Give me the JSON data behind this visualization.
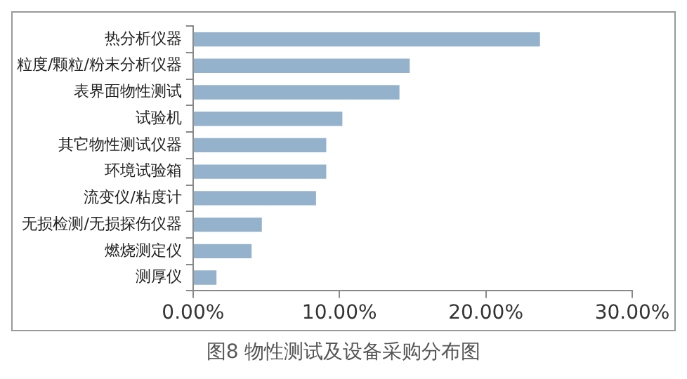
{
  "chart_data": {
    "type": "bar",
    "orientation": "horizontal",
    "title": "图8 物性测试及设备采购分布图",
    "categories": [
      "热分析仪器",
      "粒度/颗粒/粉末分析仪器",
      "表界面物性测试",
      "试验机",
      "其它物性测试仪器",
      "环境试验箱",
      "流变仪/粘度计",
      "无损检测/无损探伤仪器",
      "燃烧测定仪",
      "测厚仪"
    ],
    "values": [
      23.7,
      14.8,
      14.1,
      10.2,
      9.1,
      9.1,
      8.4,
      4.7,
      4.0,
      1.6
    ],
    "color": "#94b2cc",
    "xlim": [
      0,
      30
    ],
    "xticks": [
      {
        "value": 0,
        "label": "0.00%"
      },
      {
        "value": 10,
        "label": "10.00%"
      },
      {
        "value": 20,
        "label": "20.00%"
      },
      {
        "value": 30,
        "label": "30.00%"
      }
    ],
    "grid": false,
    "legend": false
  }
}
